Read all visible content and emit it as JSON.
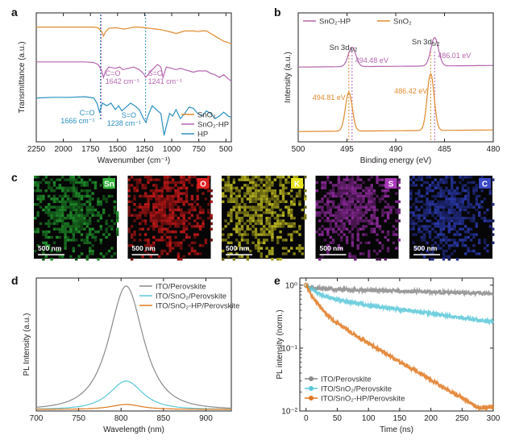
{
  "panel_labels": [
    "a",
    "b",
    "c",
    "d",
    "e"
  ],
  "colors": {
    "sno2": "#e08a2e",
    "sno2hp": "#b565b0",
    "hp": "#2a8fc0",
    "hp_blue_annot": "#2a8fc0",
    "perovskite": "#8a8a8a",
    "ito_sno2": "#5ac8d8",
    "ito_sno2hp": "#e07820"
  },
  "chart_data": [
    {
      "id": "a",
      "type": "line",
      "xlabel": "Wavenumber (cm⁻¹)",
      "ylabel": "Transmittance (a.u.)",
      "xlim": [
        2250,
        450
      ],
      "xticks": [
        2250,
        2000,
        1750,
        1500,
        1250,
        1000,
        750,
        500
      ],
      "legend": {
        "position": "bottom-right",
        "entries": [
          "SnO₂",
          "SnO₂-HP",
          "HP"
        ]
      },
      "annotations": [
        {
          "text": "C=O",
          "sub": "1642 cm⁻¹",
          "x": 1642,
          "color": "sno2hp"
        },
        {
          "text": "S=O",
          "sub": "1241 cm⁻¹",
          "x": 1241,
          "color": "sno2hp"
        },
        {
          "text": "C=O",
          "sub": "1666 cm⁻¹",
          "x": 1666,
          "color": "hp"
        },
        {
          "text": "S=O",
          "sub": "1238 cm⁻¹",
          "x": 1238,
          "color": "hp"
        }
      ],
      "series": [
        {
          "name": "SnO₂",
          "color": "sno2",
          "x": [
            2250,
            2100,
            1950,
            1800,
            1720,
            1680,
            1650,
            1630,
            1610,
            1580,
            1520,
            1480,
            1440,
            1400,
            1350,
            1300,
            1250,
            1200,
            1150,
            1100,
            1050,
            1000,
            960,
            920,
            880,
            840,
            800,
            760,
            720,
            680,
            640,
            600,
            560,
            520,
            480,
            450
          ],
          "y": [
            0.89,
            0.89,
            0.89,
            0.89,
            0.89,
            0.885,
            0.86,
            0.82,
            0.855,
            0.88,
            0.885,
            0.88,
            0.875,
            0.88,
            0.89,
            0.89,
            0.885,
            0.88,
            0.875,
            0.87,
            0.86,
            0.85,
            0.84,
            0.85,
            0.86,
            0.86,
            0.86,
            0.855,
            0.86,
            0.86,
            0.84,
            0.82,
            0.8,
            0.78,
            0.77,
            0.76
          ]
        },
        {
          "name": "SnO₂-HP",
          "color": "sno2hp",
          "x": [
            2250,
            2100,
            1950,
            1800,
            1720,
            1680,
            1650,
            1630,
            1610,
            1580,
            1520,
            1480,
            1450,
            1400,
            1350,
            1300,
            1260,
            1240,
            1220,
            1180,
            1130,
            1100,
            1080,
            1050,
            1000,
            960,
            920,
            880,
            840,
            800,
            760,
            720,
            680,
            640,
            600,
            560,
            520,
            480,
            450
          ],
          "y": [
            0.62,
            0.62,
            0.62,
            0.62,
            0.615,
            0.6,
            0.56,
            0.5,
            0.55,
            0.58,
            0.57,
            0.58,
            0.56,
            0.57,
            0.58,
            0.56,
            0.53,
            0.5,
            0.52,
            0.56,
            0.6,
            0.58,
            0.5,
            0.58,
            0.57,
            0.56,
            0.57,
            0.56,
            0.55,
            0.54,
            0.55,
            0.55,
            0.55,
            0.53,
            0.52,
            0.5,
            0.52,
            0.49,
            0.47
          ]
        },
        {
          "name": "HP",
          "color": "hp",
          "x": [
            2250,
            2100,
            1950,
            1800,
            1720,
            1690,
            1666,
            1640,
            1600,
            1560,
            1520,
            1490,
            1460,
            1420,
            1380,
            1340,
            1300,
            1260,
            1238,
            1220,
            1180,
            1130,
            1100,
            1070,
            1050,
            1020,
            990,
            960,
            920,
            880,
            840,
            800,
            760,
            720,
            680,
            640,
            600,
            560,
            520,
            480,
            450
          ],
          "y": [
            0.34,
            0.345,
            0.345,
            0.35,
            0.34,
            0.3,
            0.23,
            0.3,
            0.28,
            0.3,
            0.25,
            0.28,
            0.24,
            0.27,
            0.3,
            0.28,
            0.25,
            0.18,
            0.15,
            0.2,
            0.28,
            0.24,
            0.22,
            0.05,
            0.12,
            0.22,
            0.2,
            0.25,
            0.18,
            0.22,
            0.27,
            0.26,
            0.22,
            0.2,
            0.24,
            0.22,
            0.18,
            0.2,
            0.23,
            0.2,
            0.19
          ]
        }
      ]
    },
    {
      "id": "b",
      "type": "line",
      "xlabel": "Binding energy (eV)",
      "ylabel": "Intensity (a.u.)",
      "xlim": [
        500,
        480
      ],
      "xticks": [
        500,
        495,
        490,
        485,
        480
      ],
      "legend": {
        "position": "top",
        "entries": [
          "SnO₂-HP",
          "SnO₂"
        ]
      },
      "peak_labels": [
        {
          "main": "Sn 3d",
          "sub": "3/2",
          "x": 495.15
        },
        {
          "main": "Sn 3d",
          "sub": "5/2",
          "x": 486.7
        }
      ],
      "annotations": [
        {
          "text": "494.48 eV",
          "x": 494.48,
          "color": "sno2hp"
        },
        {
          "text": "486.01 eV",
          "x": 486.01,
          "color": "sno2hp"
        },
        {
          "text": "494.81 eV",
          "x": 494.81,
          "color": "sno2"
        },
        {
          "text": "486.42 eV",
          "x": 486.42,
          "color": "sno2"
        }
      ],
      "series": [
        {
          "name": "SnO₂-HP",
          "color": "sno2hp",
          "baseline": 0.58,
          "peaks": [
            [
              494.48,
              0.15
            ],
            [
              486.01,
              0.22
            ]
          ],
          "width": 0.55
        },
        {
          "name": "SnO₂",
          "color": "sno2",
          "baseline": 0.08,
          "peaks": [
            [
              494.81,
              0.3
            ],
            [
              486.42,
              0.44
            ]
          ],
          "width": 0.5
        }
      ]
    },
    {
      "id": "d",
      "type": "line",
      "xlabel": "Wavelength (nm)",
      "ylabel": "PL Intensity (a.u.)",
      "xlim": [
        700,
        930
      ],
      "xticks": [
        700,
        750,
        800,
        850,
        900
      ],
      "legend": {
        "position": "top-right",
        "entries": [
          "ITO/Perovskite",
          "ITO/SnO₂/Perovskite",
          "ITO/SnO₂-HP/Perovskite"
        ]
      },
      "series": [
        {
          "name": "ITO/Perovskite",
          "color": "perovskite",
          "peak": 806,
          "amplitude": 1.0,
          "width": 25
        },
        {
          "name": "ITO/SnO₂/Perovskite",
          "color": "ito_sno2",
          "peak": 806,
          "amplitude": 0.23,
          "width": 24
        },
        {
          "name": "ITO/SnO₂-HP/Perovskite",
          "color": "ito_sno2hp",
          "peak": 806,
          "amplitude": 0.04,
          "width": 22
        }
      ]
    },
    {
      "id": "e",
      "type": "scatter",
      "xlabel": "Time (ns)",
      "ylabel": "PL intensity (norm.)",
      "xlim": [
        -10,
        300
      ],
      "ylim": [
        0.01,
        1.3
      ],
      "yscale": "log",
      "xticks": [
        0,
        50,
        100,
        150,
        200,
        250,
        300
      ],
      "yticks": [
        {
          "value": 1,
          "label": "10⁰"
        },
        {
          "value": 0.1,
          "label": "10⁻¹"
        },
        {
          "value": 0.01,
          "label": "10⁻²"
        }
      ],
      "legend": {
        "position": "bottom-left",
        "entries": [
          "ITO/Perovskite",
          "ITO/SnO₂/Perovskite",
          "ITO/SnO₂-HP/Perovskite"
        ]
      },
      "series": [
        {
          "name": "ITO/Perovskite",
          "color": "perovskite",
          "tau1": 10,
          "a1": 0.12,
          "tau2": 1700,
          "a2": 0.88
        },
        {
          "name": "ITO/SnO₂/Perovskite",
          "color": "ito_sno2",
          "tau1": 20,
          "a1": 0.35,
          "tau2": 330,
          "a2": 0.65
        },
        {
          "name": "ITO/SnO₂-HP/Perovskite",
          "color": "ito_sno2hp",
          "tau1": 15,
          "a1": 0.55,
          "tau2": 75,
          "a2": 0.45
        }
      ]
    }
  ],
  "eds": {
    "tiles": [
      {
        "element": "Sn",
        "base": "#1f8f2a",
        "badge": "#34b33d"
      },
      {
        "element": "O",
        "base": "#c01818",
        "badge": "#e02020"
      },
      {
        "element": "K",
        "base": "#b8b420",
        "badge": "#e6e21e"
      },
      {
        "element": "S",
        "base": "#8c2a9a",
        "badge": "#a83ab8"
      },
      {
        "element": "C",
        "base": "#2a38a8",
        "badge": "#3c4ac8"
      }
    ],
    "scale_bar": "500 nm"
  }
}
